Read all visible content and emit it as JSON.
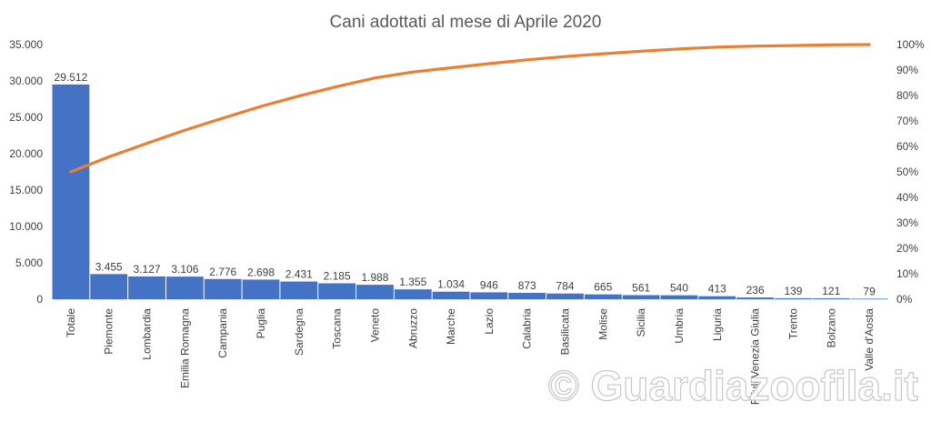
{
  "chart_data": {
    "type": "bar",
    "combo": "bar + cumulative percentage line (pareto)",
    "title": "Cani adottati al mese di Aprile 2020",
    "xlabel": "",
    "ylabel": "",
    "categories": [
      "Totale",
      "Piemonte",
      "Lombardia",
      "Emilia Romagna",
      "Campania",
      "Puglia",
      "Sardegna",
      "Toscana",
      "Veneto",
      "Abruzzo",
      "Marche",
      "Lazio",
      "Calabria",
      "Basilicata",
      "Molise",
      "Sicilia",
      "Umbria",
      "Liguria",
      "Friuli Venezia Giulia",
      "Trento",
      "Bolzano",
      "Valle d'Aosta"
    ],
    "series": [
      {
        "type": "bar",
        "values": [
          29512,
          3455,
          3127,
          3106,
          2776,
          2698,
          2431,
          2185,
          1988,
          1355,
          1034,
          946,
          873,
          784,
          665,
          561,
          540,
          413,
          236,
          139,
          121,
          79
        ],
        "data_labels": [
          "29.512",
          "3.455",
          "3.127",
          "3.106",
          "2.776",
          "2.698",
          "2.431",
          "2.185",
          "1.988",
          "1.355",
          "1.034",
          "946",
          "873",
          "784",
          "665",
          "561",
          "540",
          "413",
          "236",
          "139",
          "121",
          "79"
        ],
        "color": "#4472C4"
      },
      {
        "type": "line",
        "axis": "right",
        "values": [
          50.0,
          55.9,
          61.2,
          66.4,
          71.1,
          75.7,
          79.8,
          83.5,
          86.9,
          89.2,
          90.9,
          92.5,
          94.0,
          95.3,
          96.4,
          97.4,
          98.3,
          99.0,
          99.4,
          99.6,
          99.9,
          100.0
        ],
        "color": "#ED7D31"
      }
    ],
    "y_left": {
      "ylim": [
        0,
        35000
      ],
      "ticks": [
        0,
        5000,
        10000,
        15000,
        20000,
        25000,
        30000,
        35000
      ],
      "tick_labels": [
        "0",
        "5.000",
        "10.000",
        "15.000",
        "20.000",
        "25.000",
        "30.000",
        "35.000"
      ]
    },
    "y_right": {
      "ylim": [
        0,
        100
      ],
      "ticks": [
        0,
        10,
        20,
        30,
        40,
        50,
        60,
        70,
        80,
        90,
        100
      ],
      "tick_labels": [
        "0%",
        "10%",
        "20%",
        "30%",
        "40%",
        "50%",
        "60%",
        "70%",
        "80%",
        "90%",
        "100%"
      ]
    },
    "grid": false,
    "legend": "none"
  },
  "watermark": "© Guardiazoofila.it"
}
